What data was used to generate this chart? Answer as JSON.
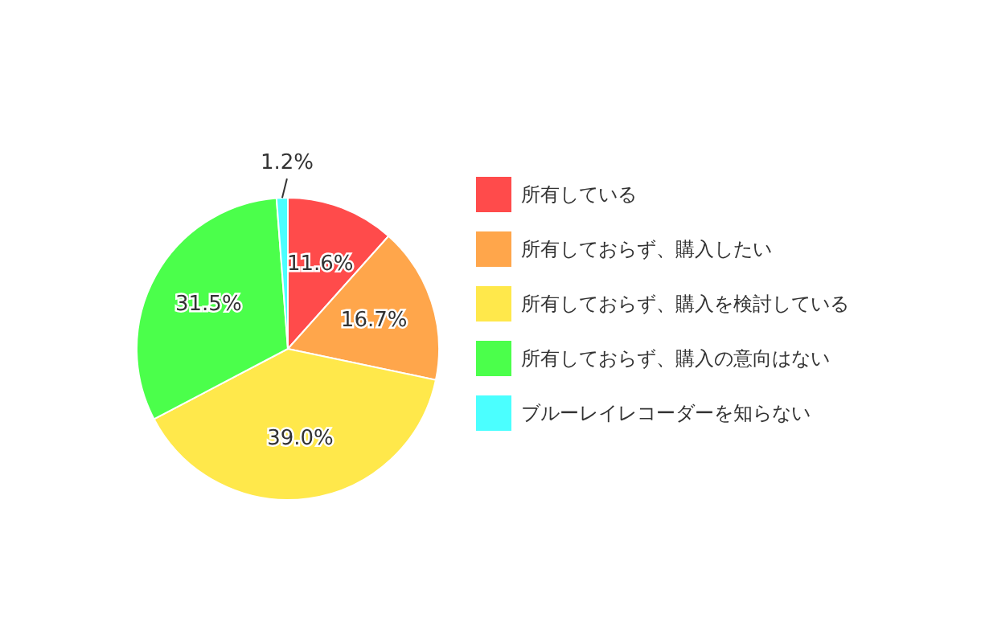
{
  "chart_data": {
    "type": "pie",
    "categories": [
      "所有している",
      "所有しておらず、購入したい",
      "所有しておらず、購入を検討している",
      "所有しておらず、購入の意向はない",
      "ブルーレイレコーダーを知らない"
    ],
    "values": [
      11.6,
      16.7,
      39.0,
      31.5,
      1.2
    ],
    "colors": [
      "#ff4b4b",
      "#ffa64b",
      "#ffe84b",
      "#4bff4b",
      "#4bffff"
    ],
    "value_labels": [
      "11.6%",
      "16.7%",
      "39.0%",
      "31.5%",
      "1.2%"
    ],
    "legend": "right"
  }
}
